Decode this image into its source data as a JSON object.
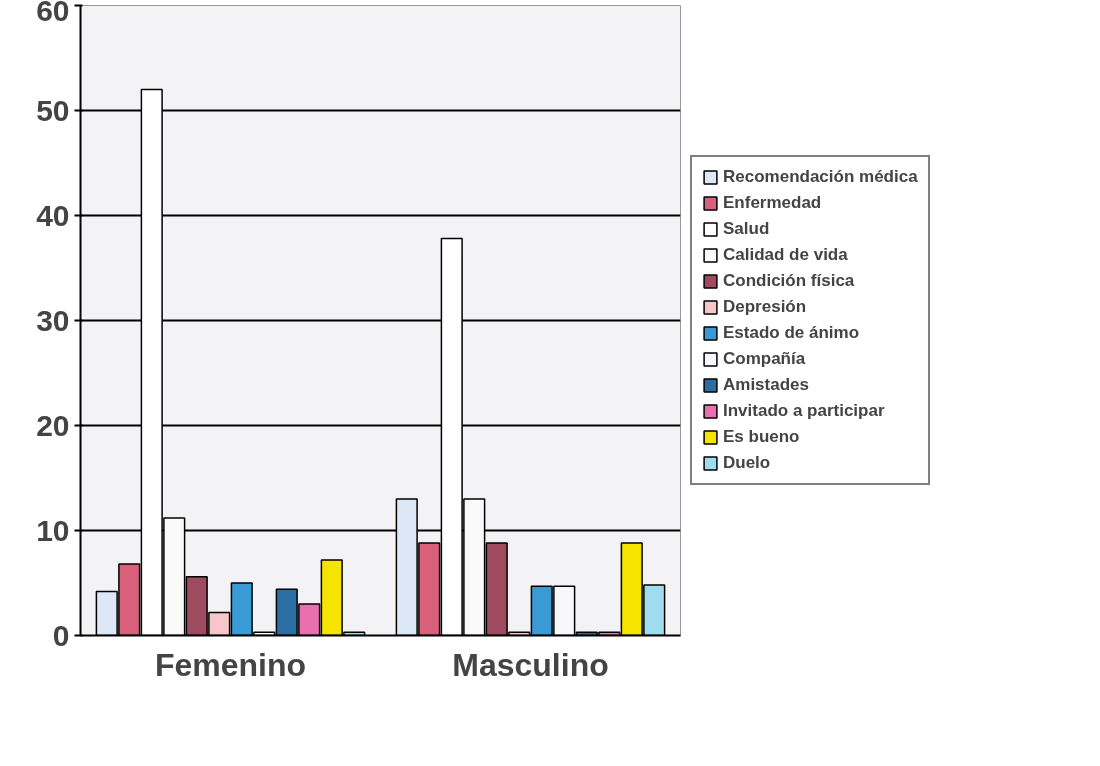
{
  "chart_data": {
    "type": "bar",
    "categories": [
      "Femenino",
      "Masculino"
    ],
    "series": [
      {
        "name": "Recomendación médica",
        "color": "#dce8f5",
        "values": [
          4.2,
          13
        ]
      },
      {
        "name": "Enfermedad",
        "color": "#d9607a",
        "values": [
          6.8,
          8.8
        ]
      },
      {
        "name": "Salud",
        "color": "#ffffff",
        "values": [
          52,
          37.8
        ]
      },
      {
        "name": "Calidad de vida",
        "color": "#fafafa",
        "values": [
          11.2,
          13
        ]
      },
      {
        "name": "Condición física",
        "color": "#9e4a5f",
        "values": [
          5.6,
          8.8
        ]
      },
      {
        "name": "Depresión",
        "color": "#f7c6c8",
        "values": [
          2.2,
          0.3
        ]
      },
      {
        "name": "Estado de ánimo",
        "color": "#3a9ad6",
        "values": [
          5.0,
          4.7
        ]
      },
      {
        "name": "Compañía",
        "color": "#f8f8fc",
        "values": [
          0.3,
          4.7
        ]
      },
      {
        "name": "Amistades",
        "color": "#2a6ea3",
        "values": [
          4.4,
          0.3
        ]
      },
      {
        "name": "Invitado a participar",
        "color": "#ea6fb0",
        "values": [
          3.0,
          0.3
        ]
      },
      {
        "name": "Es bueno",
        "color": "#f5e400",
        "values": [
          7.2,
          8.8
        ]
      },
      {
        "name": "Duelo",
        "color": "#9fdcef",
        "values": [
          0.3,
          4.8
        ]
      }
    ],
    "ylim": [
      0,
      60
    ],
    "yticks": [
      0,
      10,
      20,
      30,
      40,
      50,
      60
    ],
    "grid": "y",
    "legend": "right"
  }
}
